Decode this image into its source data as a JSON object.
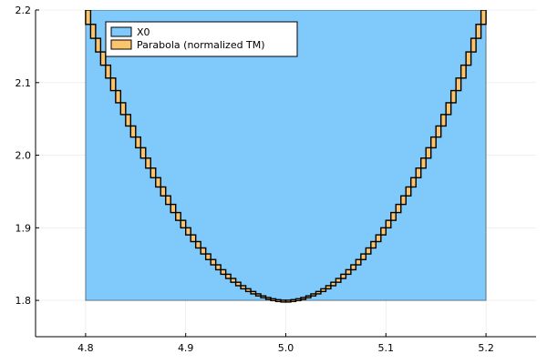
{
  "chart_data": {
    "type": "area",
    "title": "",
    "xlabel": "",
    "ylabel": "",
    "xlim": [
      4.75,
      5.25
    ],
    "ylim": [
      1.75,
      2.2
    ],
    "xticks": [
      4.8,
      4.9,
      5.0,
      5.1,
      5.2
    ],
    "xtick_labels": [
      "4.8",
      "4.9",
      "5.0",
      "5.1",
      "5.2"
    ],
    "yticks": [
      1.8,
      1.9,
      2.0,
      2.1,
      2.2
    ],
    "ytick_labels": [
      "1.8",
      "1.9",
      "2.0",
      "2.1",
      "2.2"
    ],
    "grid": true,
    "legend_position": "top-left",
    "series": [
      {
        "name": "X0",
        "kind": "box",
        "x": [
          4.8,
          5.2
        ],
        "y": [
          1.8,
          2.2
        ],
        "color": "#80c9fb"
      },
      {
        "name": "Parabola (normalized TM)",
        "kind": "boxes along parabola",
        "vertex": [
          5.0,
          1.8
        ],
        "coefficient": 10,
        "x_range": [
          4.8,
          5.2
        ],
        "box_count": 80,
        "color": "#fdc46e"
      }
    ]
  }
}
